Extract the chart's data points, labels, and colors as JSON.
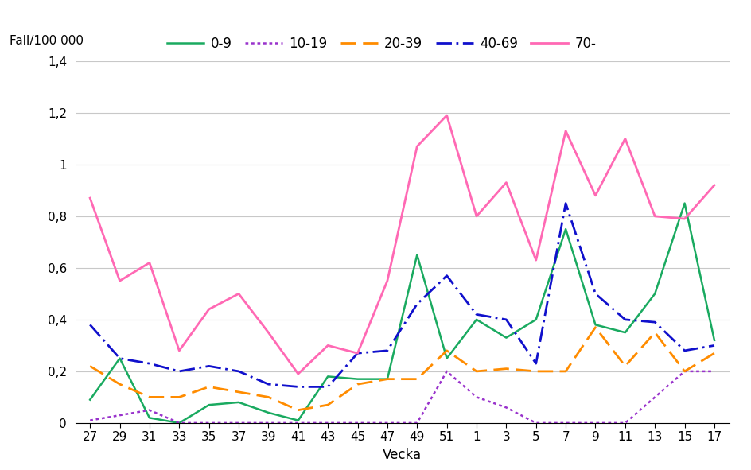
{
  "x_labels": [
    "27",
    "29",
    "31",
    "33",
    "35",
    "37",
    "39",
    "41",
    "43",
    "45",
    "47",
    "49",
    "51",
    "1",
    "3",
    "5",
    "7",
    "9",
    "11",
    "13",
    "15",
    "17"
  ],
  "series": {
    "0-9": [
      0.09,
      0.25,
      0.02,
      0.0,
      0.07,
      0.08,
      0.04,
      0.01,
      0.18,
      0.17,
      0.17,
      0.65,
      0.25,
      0.4,
      0.33,
      0.4,
      0.75,
      0.38,
      0.35,
      0.5,
      0.85,
      0.32
    ],
    "10-19": [
      0.01,
      0.03,
      0.05,
      0.0,
      0.0,
      0.0,
      0.0,
      0.0,
      0.0,
      0.0,
      0.0,
      0.0,
      0.2,
      0.1,
      0.06,
      0.0,
      0.0,
      0.0,
      0.0,
      0.1,
      0.2,
      0.2
    ],
    "20-39": [
      0.22,
      0.15,
      0.1,
      0.1,
      0.14,
      0.12,
      0.1,
      0.05,
      0.07,
      0.15,
      0.17,
      0.17,
      0.28,
      0.2,
      0.21,
      0.2,
      0.2,
      0.37,
      0.22,
      0.35,
      0.2,
      0.27
    ],
    "40-69": [
      0.38,
      0.25,
      0.23,
      0.2,
      0.22,
      0.2,
      0.15,
      0.14,
      0.14,
      0.27,
      0.28,
      0.46,
      0.57,
      0.42,
      0.4,
      0.23,
      0.85,
      0.5,
      0.4,
      0.39,
      0.28,
      0.3
    ],
    "70-": [
      0.87,
      0.55,
      0.62,
      0.28,
      0.44,
      0.5,
      0.35,
      0.19,
      0.3,
      0.27,
      0.55,
      1.07,
      1.19,
      0.8,
      0.93,
      0.63,
      1.13,
      0.88,
      1.1,
      0.8,
      0.79,
      0.92
    ]
  },
  "colors": {
    "0-9": "#1aaa60",
    "10-19": "#9932cc",
    "20-39": "#ff8c00",
    "40-69": "#1010cc",
    "70-": "#ff69b4"
  },
  "ylabel": "Fall/100 000",
  "xlabel": "Vecka",
  "ylim": [
    0,
    1.4
  ],
  "yticks": [
    0,
    0.2,
    0.4,
    0.6,
    0.8,
    1.0,
    1.2,
    1.4
  ],
  "ytick_labels": [
    "0",
    "0,2",
    "0,4",
    "0,6",
    "0,8",
    "1",
    "1,2",
    "1,4"
  ],
  "background_color": "#ffffff",
  "grid_color": "#c8c8c8",
  "legend_order": [
    "0-9",
    "10-19",
    "20-39",
    "40-69",
    "70-"
  ]
}
